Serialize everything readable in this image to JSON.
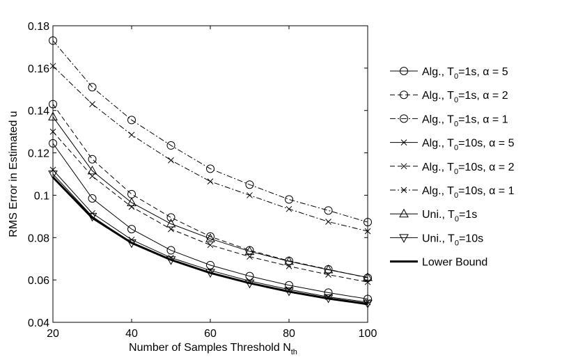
{
  "chart_data": {
    "type": "line",
    "title": "",
    "xlabel": "Number of Samples Threshold N",
    "xlabel_sub": "th",
    "ylabel": "RMS Error in Estimated u",
    "xlim": [
      20,
      100
    ],
    "ylim": [
      0.04,
      0.18
    ],
    "xticks": [
      20,
      40,
      60,
      80,
      100
    ],
    "xtick_labels": [
      "20",
      "40",
      "60",
      "80",
      "100"
    ],
    "yticks": [
      0.04,
      0.06,
      0.08,
      0.1,
      0.12,
      0.14,
      0.16,
      0.18
    ],
    "ytick_labels": [
      "0.04",
      "0.06",
      "0.08",
      "0.1",
      "0.12",
      "0.14",
      "0.16",
      "0.18"
    ],
    "x": [
      20,
      30,
      40,
      50,
      60,
      70,
      80,
      90,
      100
    ],
    "legend_position": "right",
    "series": [
      {
        "name": "Alg., T0=1s, α = 5",
        "legend": {
          "pre": "Alg., T",
          "sub": "0",
          "post": "=1s, α = 5"
        },
        "line": "solid",
        "marker": "circle",
        "values": [
          0.1245,
          0.0985,
          0.084,
          0.074,
          0.067,
          0.0618,
          0.0575,
          0.054,
          0.051
        ]
      },
      {
        "name": "Alg., T0=1s, α = 2",
        "legend": {
          "pre": "Alg., T",
          "sub": "0",
          "post": "=1s, α = 2"
        },
        "line": "dashed",
        "marker": "circle",
        "values": [
          0.143,
          0.117,
          0.1005,
          0.0895,
          0.0805,
          0.074,
          0.069,
          0.065,
          0.061
        ]
      },
      {
        "name": "Alg., T0=1s, α = 1",
        "legend": {
          "pre": "Alg., T",
          "sub": "0",
          "post": "=1s, α = 1"
        },
        "line": "dashdot",
        "marker": "circle",
        "values": [
          0.173,
          0.151,
          0.1355,
          0.1235,
          0.1125,
          0.105,
          0.098,
          0.0928,
          0.0873
        ]
      },
      {
        "name": "Alg., T0=10s, α = 5",
        "legend": {
          "pre": "Alg., T",
          "sub": "0",
          "post": "=10s, α = 5"
        },
        "line": "solid",
        "marker": "x",
        "values": [
          0.112,
          0.0915,
          0.079,
          0.0705,
          0.0645,
          0.0595,
          0.0555,
          0.052,
          0.0495
        ]
      },
      {
        "name": "Alg., T0=10s, α = 2",
        "legend": {
          "pre": "Alg., T",
          "sub": "0",
          "post": "=10s, α = 2"
        },
        "line": "dashed",
        "marker": "x",
        "values": [
          0.13,
          0.109,
          0.0945,
          0.084,
          0.0765,
          0.071,
          0.0665,
          0.0625,
          0.059
        ]
      },
      {
        "name": "Alg., T0=10s, α = 1",
        "legend": {
          "pre": "Alg., T",
          "sub": "0",
          "post": "=10s, α = 1"
        },
        "line": "dashdot",
        "marker": "x",
        "values": [
          0.161,
          0.143,
          0.1285,
          0.1165,
          0.1065,
          0.1,
          0.0935,
          0.0875,
          0.083
        ]
      },
      {
        "name": "Uni., T0=1s",
        "legend": {
          "pre": "Uni., T",
          "sub": "0",
          "post": "=1s"
        },
        "line": "solid",
        "marker": "triangle-up",
        "values": [
          0.137,
          0.1115,
          0.0965,
          0.0865,
          0.0795,
          0.0735,
          0.0688,
          0.0648,
          0.0612
        ]
      },
      {
        "name": "Uni., T0=10s",
        "legend": {
          "pre": "Uni., T",
          "sub": "0",
          "post": "=10s"
        },
        "line": "solid",
        "marker": "triangle-down",
        "values": [
          0.11,
          0.09,
          0.0775,
          0.0695,
          0.0635,
          0.0585,
          0.0548,
          0.0515,
          0.049
        ]
      },
      {
        "name": "Lower Bound",
        "legend": {
          "pre": "Lower Bound",
          "sub": "",
          "post": ""
        },
        "line": "thick",
        "marker": "none",
        "values": [
          0.1085,
          0.0893,
          0.0775,
          0.0695,
          0.0633,
          0.0585,
          0.0545,
          0.0512,
          0.0486
        ]
      }
    ]
  }
}
